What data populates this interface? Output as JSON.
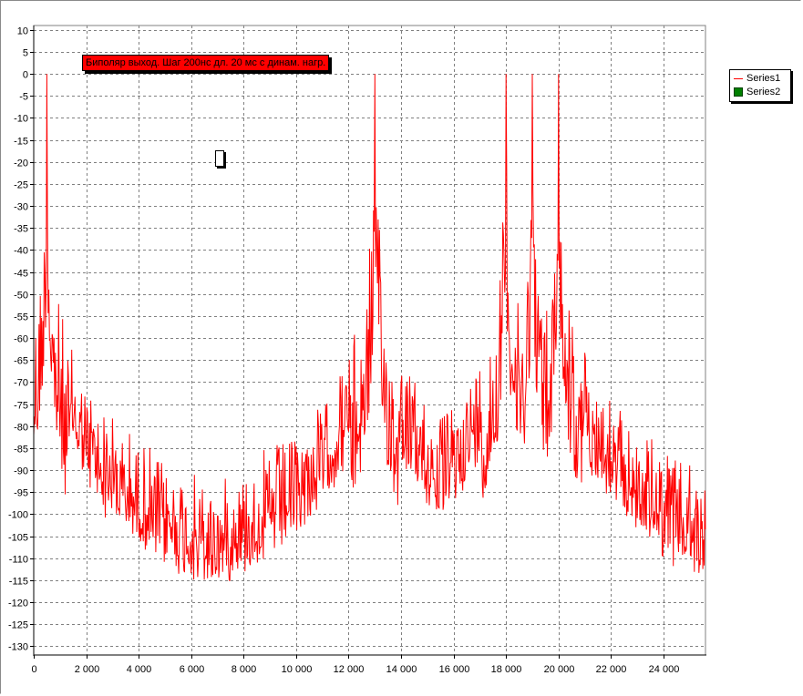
{
  "chart_data": {
    "type": "line",
    "title": "Биполяр выход. Шаг 200нс дл. 20 мс с динам. нагр.",
    "xlabel": "",
    "ylabel": "",
    "xlim": [
      0,
      25600
    ],
    "ylim": [
      -132,
      11
    ],
    "grid": true,
    "legend_position": "right",
    "x_ticks": [
      0,
      2000,
      4000,
      6000,
      8000,
      10000,
      12000,
      14000,
      16000,
      18000,
      20000,
      22000,
      24000
    ],
    "x_tick_labels": [
      "0",
      "2 000",
      "4 000",
      "6 000",
      "8 000",
      "10 000",
      "12 000",
      "14 000",
      "16 000",
      "18 000",
      "20 000",
      "22 000",
      "24 000"
    ],
    "y_ticks": [
      10,
      5,
      0,
      -5,
      -10,
      -15,
      -20,
      -25,
      -30,
      -35,
      -40,
      -45,
      -50,
      -55,
      -60,
      -65,
      -70,
      -75,
      -80,
      -85,
      -90,
      -95,
      -100,
      -105,
      -110,
      -115,
      -120,
      -125,
      -130
    ],
    "y_tick_labels": [
      "10",
      "5",
      "0",
      "-5",
      "-10",
      "-15",
      "-20",
      "-25",
      "-30",
      "-35",
      "-40",
      "-45",
      "-50",
      "-55",
      "-60",
      "-65",
      "-70",
      "-75",
      "-80",
      "-85",
      "-90",
      "-95",
      "-100",
      "-105",
      "-110",
      "-115",
      "-120",
      "-125",
      "-130"
    ],
    "peaks": [
      {
        "x": 500,
        "y": 0
      },
      {
        "x": 13000,
        "y": 0
      },
      {
        "x": 18000,
        "y": 0
      },
      {
        "x": 19000,
        "y": 0
      },
      {
        "x": 20000,
        "y": 0
      }
    ],
    "noise_floor": -120,
    "series": [
      {
        "name": "Series1",
        "color": "#ff0000",
        "kind": "line"
      },
      {
        "name": "Series2",
        "color": "#008000",
        "kind": "marker"
      }
    ]
  }
}
